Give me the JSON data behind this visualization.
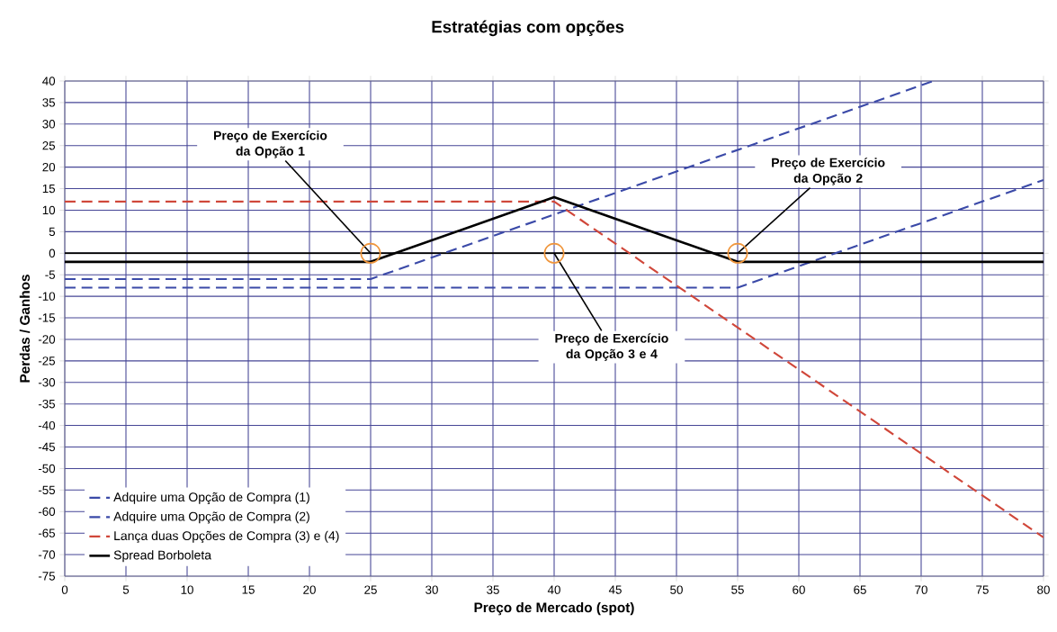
{
  "chart_data": {
    "type": "line",
    "title": "Estratégias com opções",
    "xlabel": "Preço de Mercado (spot)",
    "ylabel": "Perdas / Ganhos",
    "xlim": [
      0,
      80
    ],
    "xticks": [
      0,
      5,
      10,
      15,
      20,
      25,
      30,
      35,
      40,
      45,
      50,
      55,
      60,
      65,
      70,
      75,
      80
    ],
    "ylim": [
      -75,
      40
    ],
    "yticks": [
      -75,
      -70,
      -65,
      -60,
      -55,
      -50,
      -45,
      -40,
      -35,
      -30,
      -25,
      -20,
      -15,
      -10,
      -5,
      0,
      5,
      10,
      15,
      20,
      25,
      30,
      35,
      40
    ],
    "grid": true,
    "legend": "bottom left",
    "marker": "none",
    "series": [
      {
        "name": "Adquire uma Opção de Compra (1)",
        "color": "#3b4aa8",
        "line_style": "dashed",
        "x": [
          0,
          25,
          71
        ],
        "values": [
          -6,
          -6,
          40
        ]
      },
      {
        "name": "Adquire uma Opção de Compra (2)",
        "color": "#3b4aa8",
        "line_style": "dashed",
        "x": [
          0,
          55,
          80
        ],
        "values": [
          -8,
          -8,
          17
        ]
      },
      {
        "name": "Lança duas Opções de Compra (3) e (4)",
        "color": "#d0473a",
        "line_style": "dashed",
        "x": [
          0,
          40,
          80
        ],
        "values": [
          12,
          12,
          -66
        ]
      },
      {
        "name": "Spread Borboleta",
        "color": "#000000",
        "line_style": "solid",
        "x": [
          0,
          25,
          40,
          55,
          80
        ],
        "values": [
          -2,
          -2,
          13,
          -2,
          -2
        ]
      }
    ],
    "ref_lines": [
      {
        "axis": "y",
        "value": 0,
        "color": "#000000",
        "line_style": "solid"
      }
    ],
    "annotations": [
      {
        "text": "Preço de Exercício da Opção 1",
        "x": 25,
        "y": 0
      },
      {
        "text": "Preço de Exercício da Opção 2",
        "x": 55,
        "y": 0
      },
      {
        "text": "Preço de Exercício da Opção 3 e 4",
        "x": 40,
        "y": 0
      }
    ]
  }
}
